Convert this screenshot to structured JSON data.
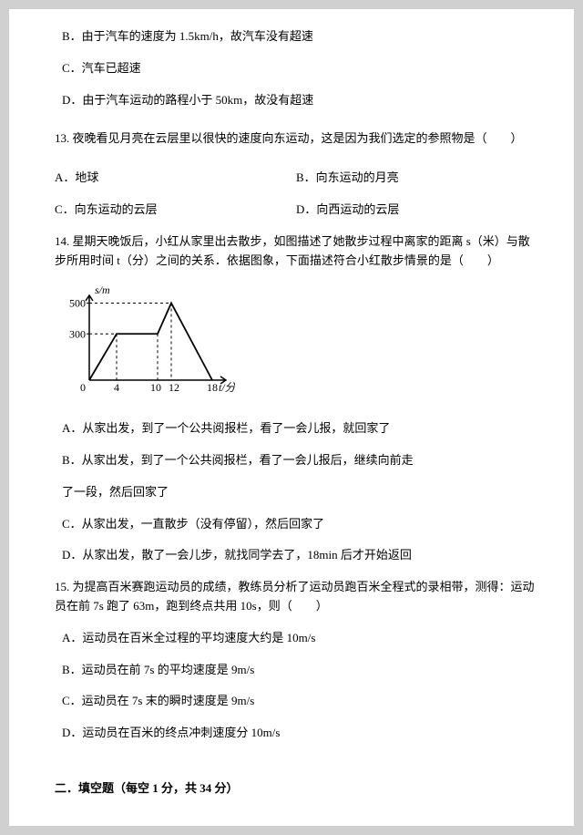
{
  "q12": {
    "optB": "B．由于汽车的速度为 1.5km/h，故汽车没有超速",
    "optC": "C．汽车已超速",
    "optD": "D．由于汽车运动的路程小于 50km，故没有超速"
  },
  "q13": {
    "stem": "13. 夜晚看见月亮在云层里以很快的速度向东运动，这是因为我们选定的参照物是（　　）",
    "optA": "A．地球",
    "optB": "B．向东运动的月亮",
    "optC": "C．向东运动的云层",
    "optD": "D．向西运动的云层"
  },
  "q14": {
    "stem": "14. 星期天晚饭后，小红从家里出去散步，如图描述了她散步过程中离家的距离 s（米）与散步所用时间 t（分）之间的关系．依据图象，下面描述符合小红散步情景的是（　　）",
    "optA": "A．从家出发，到了一个公共阅报栏，看了一会儿报，就回家了",
    "optB": "B．从家出发，到了一个公共阅报栏，看了一会儿报后，继续向前走",
    "optB2": "了一段，然后回家了",
    "optC": "C．从家出发，一直散步（没有停留），然后回家了",
    "optD": "D．从家出发，散了一会儿步，就找同学去了，18min 后才开始返回"
  },
  "q15": {
    "stem": "15. 为提高百米赛跑运动员的成绩，教练员分析了运动员跑百米全程式的录相带，测得：运动员在前 7s 跑了 63m，跑到终点共用 10s，则（　　）",
    "optA": "A．运动员在百米全过程的平均速度大约是 10m/s",
    "optB": "B．运动员在前 7s 的平均速度是 9m/s",
    "optC": "C．运动员在 7s 末的瞬时速度是 9m/s",
    "optD": "D．运动员在百米的终点冲刺速度分 10m/s"
  },
  "section2": "二．填空题（每空 1 分，共 34 分）",
  "graph": {
    "ylabel": "s/m",
    "xlabel": "t/分",
    "yticks": [
      "500",
      "300"
    ],
    "xticks": [
      "0",
      "4",
      "10",
      "12",
      "18"
    ],
    "points_x": [
      0,
      4,
      10,
      12,
      18
    ],
    "points_y": [
      0,
      300,
      300,
      500,
      0
    ],
    "y_max": 550,
    "x_max": 20,
    "width": 190,
    "height": 125,
    "axis_color": "#000000",
    "line_color": "#000000",
    "text_color": "#000000",
    "font_size": 12
  }
}
